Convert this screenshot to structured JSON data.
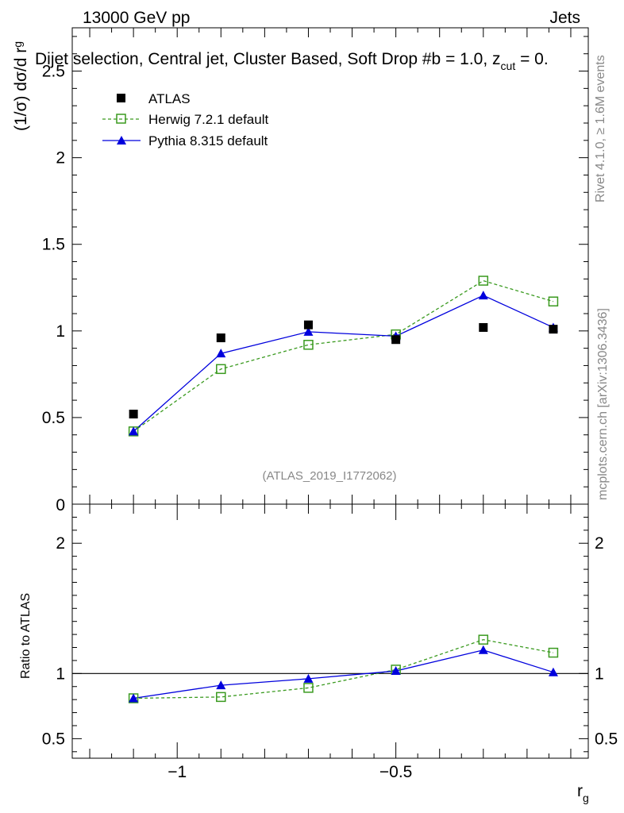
{
  "header": {
    "left": "13000 GeV pp",
    "right": "Jets",
    "subtitle": "Dijet selection, Central jet, Cluster Based, Soft Drop #b = 1.0, z",
    "subtitle_sub": "cut",
    "subtitle_tail": " = 0."
  },
  "side": {
    "rivet": "Rivet 4.1.0, ≥ 1.6M events",
    "mcplots": "mcplots.cern.ch [arXiv:1306.3436]"
  },
  "watermark": "(ATLAS_2019_I1772062)",
  "colors": {
    "atlas": "#000000",
    "herwig": "#3a9a1f",
    "pythia": "#0000dd"
  },
  "chart_data": [
    {
      "type": "scatter",
      "panel": "main",
      "ylabel": "(1/σ) dσ/d r",
      "ylabel_sub": "g",
      "xlim": [
        -1.24,
        -0.06
      ],
      "ylim": [
        0,
        2.75
      ],
      "x_ticks": [
        -1.0,
        -0.5
      ],
      "y_ticks": [
        0.5,
        1,
        1.5,
        2,
        2.5
      ],
      "y_tick_labels": [
        "0.5",
        "1",
        "1.5",
        "2",
        "2.5"
      ],
      "y_zero_label": "0",
      "legend": [
        "ATLAS",
        "Herwig 7.2.1 default",
        "Pythia 8.315 default"
      ],
      "x": [
        -1.1,
        -0.9,
        -0.7,
        -0.5,
        -0.3,
        -0.14
      ],
      "series": [
        {
          "name": "ATLAS",
          "values": [
            0.52,
            0.96,
            1.035,
            0.95,
            1.02,
            1.01
          ]
        },
        {
          "name": "Herwig 7.2.1 default",
          "values": [
            0.42,
            0.78,
            0.92,
            0.98,
            1.29,
            1.17
          ]
        },
        {
          "name": "Pythia 8.315 default",
          "values": [
            0.42,
            0.87,
            0.995,
            0.97,
            1.205,
            1.02
          ]
        }
      ]
    },
    {
      "type": "line",
      "panel": "ratio",
      "ylabel": "Ratio to ATLAS",
      "xlabel": "r",
      "xlabel_sub": "g",
      "xlim": [
        -1.24,
        -0.06
      ],
      "ylim": [
        0.35,
        2.3
      ],
      "x_ticks": [
        -1.0,
        -0.5
      ],
      "x_tick_labels": [
        "−1",
        "−0.5"
      ],
      "y_ticks": [
        0.5,
        1,
        2
      ],
      "y_tick_labels": [
        "0.5",
        "1",
        "2"
      ],
      "reference": 1,
      "x": [
        -1.1,
        -0.9,
        -0.7,
        -0.5,
        -0.3,
        -0.14
      ],
      "series": [
        {
          "name": "Herwig 7.2.1 default",
          "values": [
            0.81,
            0.82,
            0.89,
            1.03,
            1.26,
            1.16
          ]
        },
        {
          "name": "Pythia 8.315 default",
          "values": [
            0.81,
            0.91,
            0.96,
            1.02,
            1.18,
            1.01
          ]
        }
      ]
    }
  ]
}
